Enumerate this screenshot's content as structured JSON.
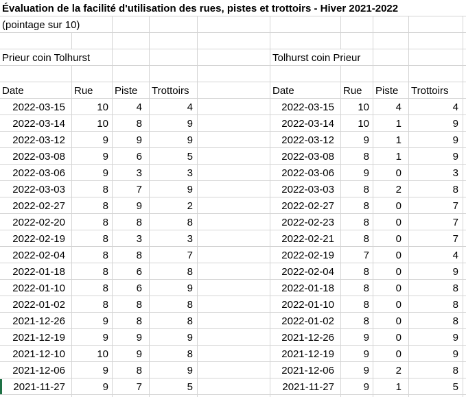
{
  "title": "Évaluation de la facilité d'utilisation des rues, pistes et trottoirs - Hiver 2021-2022",
  "subtitle": "(pointage sur 10)",
  "columns": [
    "Date",
    "Rue",
    "Piste",
    "Trottoirs"
  ],
  "tables": [
    {
      "location_label": "Prieur coin Tolhurst",
      "rows": [
        {
          "date": "2022-03-15",
          "rue": "10",
          "piste": "4",
          "trottoirs": "4"
        },
        {
          "date": "2022-03-14",
          "rue": "10",
          "piste": "8",
          "trottoirs": "9"
        },
        {
          "date": "2022-03-12",
          "rue": "9",
          "piste": "9",
          "trottoirs": "9"
        },
        {
          "date": "2022-03-08",
          "rue": "9",
          "piste": "6",
          "trottoirs": "5"
        },
        {
          "date": "2022-03-06",
          "rue": "9",
          "piste": "3",
          "trottoirs": "3"
        },
        {
          "date": "2022-03-03",
          "rue": "8",
          "piste": "7",
          "trottoirs": "9"
        },
        {
          "date": "2022-02-27",
          "rue": "8",
          "piste": "9",
          "trottoirs": "2"
        },
        {
          "date": "2022-02-20",
          "rue": "8",
          "piste": "8",
          "trottoirs": "8"
        },
        {
          "date": "2022-02-19",
          "rue": "8",
          "piste": "3",
          "trottoirs": "3"
        },
        {
          "date": "2022-02-04",
          "rue": "8",
          "piste": "8",
          "trottoirs": "7"
        },
        {
          "date": "2022-01-18",
          "rue": "8",
          "piste": "6",
          "trottoirs": "8"
        },
        {
          "date": "2022-01-10",
          "rue": "8",
          "piste": "6",
          "trottoirs": "9"
        },
        {
          "date": "2022-01-02",
          "rue": "8",
          "piste": "8",
          "trottoirs": "8"
        },
        {
          "date": "2021-12-26",
          "rue": "9",
          "piste": "8",
          "trottoirs": "8"
        },
        {
          "date": "2021-12-19",
          "rue": "9",
          "piste": "9",
          "trottoirs": "9"
        },
        {
          "date": "2021-12-10",
          "rue": "10",
          "piste": "9",
          "trottoirs": "8"
        },
        {
          "date": "2021-12-06",
          "rue": "9",
          "piste": "8",
          "trottoirs": "9"
        },
        {
          "date": "2021-11-27",
          "rue": "9",
          "piste": "7",
          "trottoirs": "5"
        }
      ]
    },
    {
      "location_label": "Tolhurst coin Prieur",
      "rows": [
        {
          "date": "2022-03-15",
          "rue": "10",
          "piste": "4",
          "trottoirs": "4"
        },
        {
          "date": "2022-03-14",
          "rue": "10",
          "piste": "1",
          "trottoirs": "9"
        },
        {
          "date": "2022-03-12",
          "rue": "9",
          "piste": "1",
          "trottoirs": "9"
        },
        {
          "date": "2022-03-08",
          "rue": "8",
          "piste": "1",
          "trottoirs": "9"
        },
        {
          "date": "2022-03-06",
          "rue": "9",
          "piste": "0",
          "trottoirs": "3"
        },
        {
          "date": "2022-03-03",
          "rue": "8",
          "piste": "2",
          "trottoirs": "8"
        },
        {
          "date": "2022-02-27",
          "rue": "8",
          "piste": "0",
          "trottoirs": "7"
        },
        {
          "date": "2022-02-23",
          "rue": "8",
          "piste": "0",
          "trottoirs": "7"
        },
        {
          "date": "2022-02-21",
          "rue": "8",
          "piste": "0",
          "trottoirs": "7"
        },
        {
          "date": "2022-02-19",
          "rue": "7",
          "piste": "0",
          "trottoirs": "4"
        },
        {
          "date": "2022-02-04",
          "rue": "8",
          "piste": "0",
          "trottoirs": "9"
        },
        {
          "date": "2022-01-18",
          "rue": "8",
          "piste": "0",
          "trottoirs": "8"
        },
        {
          "date": "2022-01-10",
          "rue": "8",
          "piste": "0",
          "trottoirs": "8"
        },
        {
          "date": "2022-01-02",
          "rue": "8",
          "piste": "0",
          "trottoirs": "8"
        },
        {
          "date": "2021-12-26",
          "rue": "9",
          "piste": "0",
          "trottoirs": "9"
        },
        {
          "date": "2021-12-19",
          "rue": "9",
          "piste": "0",
          "trottoirs": "9"
        },
        {
          "date": "2021-12-06",
          "rue": "9",
          "piste": "2",
          "trottoirs": "8"
        },
        {
          "date": "2021-11-27",
          "rue": "9",
          "piste": "1",
          "trottoirs": "5"
        }
      ]
    }
  ],
  "colors": {
    "gridline": "#d4d4d4",
    "selection_green": "#1e7145",
    "text": "#000000",
    "background": "#ffffff"
  }
}
